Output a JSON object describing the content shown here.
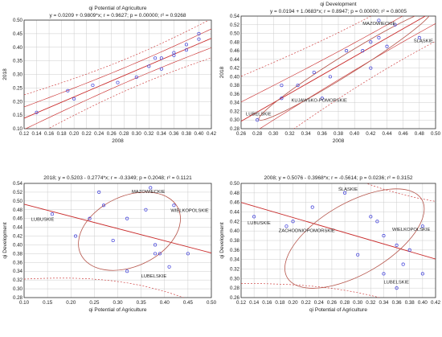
{
  "chart_data": [
    {
      "type": "scatter",
      "title_line1": "qi Potential of Agriculture",
      "title_line2": "y = 0.0209 + 0.9809*x; r = 0.9627; p = 0.00000; r² = 0.9268",
      "xlabel": "2008",
      "ylabel": "2018",
      "xlim": [
        0.12,
        0.42
      ],
      "ylim": [
        0.1,
        0.5
      ],
      "xticks": [
        "0.12",
        "0.14",
        "0.16",
        "0.18",
        "0.20",
        "0.22",
        "0.24",
        "0.26",
        "0.28",
        "0.30",
        "0.32",
        "0.34",
        "0.36",
        "0.38",
        "0.40",
        "0.42"
      ],
      "yticks": [
        "0.10",
        "0.15",
        "0.20",
        "0.25",
        "0.30",
        "0.35",
        "0.40",
        "0.45",
        "0.50"
      ],
      "regression": {
        "intercept": 0.0209,
        "slope": 0.9809
      },
      "x": [
        0.14,
        0.19,
        0.2,
        0.23,
        0.27,
        0.3,
        0.32,
        0.33,
        0.34,
        0.34,
        0.36,
        0.36,
        0.38,
        0.38,
        0.4,
        0.4
      ],
      "y": [
        0.16,
        0.24,
        0.21,
        0.26,
        0.27,
        0.29,
        0.33,
        0.36,
        0.36,
        0.32,
        0.37,
        0.38,
        0.39,
        0.41,
        0.43,
        0.45
      ],
      "labels": []
    },
    {
      "type": "scatter",
      "title_line1": "qi Development",
      "title_line2": "y = 0.0194 + 1.0683*x; r = 0.8947; p = 0.00000; r² = 0.8005",
      "xlabel": "2008",
      "ylabel": "2018",
      "xlim": [
        0.26,
        0.5
      ],
      "ylim": [
        0.28,
        0.54
      ],
      "xticks": [
        "0.26",
        "0.28",
        "0.30",
        "0.32",
        "0.34",
        "0.36",
        "0.38",
        "0.40",
        "0.42",
        "0.44",
        "0.46",
        "0.48",
        "0.50"
      ],
      "yticks": [
        "0.28",
        "0.30",
        "0.32",
        "0.34",
        "0.36",
        "0.38",
        "0.40",
        "0.42",
        "0.44",
        "0.46",
        "0.48",
        "0.50",
        "0.52",
        "0.54"
      ],
      "regression": {
        "intercept": 0.0194,
        "slope": 1.0683
      },
      "x": [
        0.28,
        0.31,
        0.31,
        0.33,
        0.35,
        0.36,
        0.37,
        0.39,
        0.41,
        0.42,
        0.42,
        0.43,
        0.43,
        0.44,
        0.45,
        0.48
      ],
      "y": [
        0.3,
        0.35,
        0.38,
        0.38,
        0.41,
        0.35,
        0.4,
        0.46,
        0.46,
        0.48,
        0.42,
        0.53,
        0.49,
        0.47,
        0.52,
        0.49
      ],
      "labels": [
        {
          "text": "MAZOWIECKIE",
          "x": 0.41,
          "y": 0.52
        },
        {
          "text": "ŚLĄSKIE",
          "x": 0.473,
          "y": 0.48
        },
        {
          "text": "KUJAWSKO-POMORSKIE",
          "x": 0.322,
          "y": 0.342
        },
        {
          "text": "LUBELSKIE",
          "x": 0.266,
          "y": 0.311
        }
      ]
    },
    {
      "type": "scatter",
      "title_line1": "2018; y = 0.5203 - 0.2774*x; r = -0.3349; p = 0.2048; r² = 0.1121",
      "title_line2": "",
      "xlabel": "qi Potential of Agriculture",
      "ylabel": "qi Development",
      "xlim": [
        0.1,
        0.5
      ],
      "ylim": [
        0.28,
        0.54
      ],
      "xticks": [
        "0.10",
        "0.15",
        "0.20",
        "0.25",
        "0.30",
        "0.35",
        "0.40",
        "0.45",
        "0.50"
      ],
      "yticks": [
        "0.28",
        "0.30",
        "0.32",
        "0.34",
        "0.36",
        "0.38",
        "0.40",
        "0.42",
        "0.44",
        "0.46",
        "0.48",
        "0.50",
        "0.52",
        "0.54"
      ],
      "regression": {
        "intercept": 0.5203,
        "slope": -0.2774
      },
      "x": [
        0.16,
        0.21,
        0.24,
        0.26,
        0.27,
        0.29,
        0.32,
        0.32,
        0.36,
        0.37,
        0.38,
        0.38,
        0.39,
        0.41,
        0.42,
        0.45
      ],
      "y": [
        0.47,
        0.42,
        0.46,
        0.52,
        0.49,
        0.41,
        0.46,
        0.34,
        0.48,
        0.53,
        0.4,
        0.38,
        0.38,
        0.35,
        0.49,
        0.38
      ],
      "labels": [
        {
          "text": "LUBUSKIE",
          "x": 0.115,
          "y": 0.455
        },
        {
          "text": "MAZOWIECKIE",
          "x": 0.33,
          "y": 0.518
        },
        {
          "text": "WIELKOPOLSKIE",
          "x": 0.413,
          "y": 0.475
        },
        {
          "text": "LUBELSKIE",
          "x": 0.35,
          "y": 0.326
        }
      ]
    },
    {
      "type": "scatter",
      "title_line1": "2008; y = 0.5076 - 0.3968*x; r = -0.5614; p = 0.0236; r² = 0.3152",
      "title_line2": "",
      "xlabel": "qi Potential of Agriculture",
      "ylabel": "qi Development",
      "xlim": [
        0.12,
        0.42
      ],
      "ylim": [
        0.26,
        0.5
      ],
      "xticks": [
        "0.12",
        "0.14",
        "0.16",
        "0.18",
        "0.20",
        "0.22",
        "0.24",
        "0.26",
        "0.28",
        "0.30",
        "0.32",
        "0.34",
        "0.36",
        "0.38",
        "0.40",
        "0.42"
      ],
      "yticks": [
        "0.26",
        "0.28",
        "0.30",
        "0.32",
        "0.34",
        "0.36",
        "0.38",
        "0.40",
        "0.42",
        "0.44",
        "0.46",
        "0.48",
        "0.50"
      ],
      "regression": {
        "intercept": 0.5076,
        "slope": -0.3968
      },
      "x": [
        0.14,
        0.19,
        0.2,
        0.23,
        0.28,
        0.3,
        0.32,
        0.33,
        0.34,
        0.34,
        0.36,
        0.36,
        0.37,
        0.38,
        0.4,
        0.4
      ],
      "y": [
        0.43,
        0.41,
        0.42,
        0.45,
        0.48,
        0.35,
        0.43,
        0.42,
        0.39,
        0.31,
        0.37,
        0.28,
        0.33,
        0.36,
        0.31,
        0.41
      ],
      "labels": [
        {
          "text": "LUBUSKIE",
          "x": 0.13,
          "y": 0.414
        },
        {
          "text": "ŚLĄSKIE",
          "x": 0.27,
          "y": 0.485
        },
        {
          "text": "ZACHODNIOPOMORSKIE",
          "x": 0.178,
          "y": 0.398
        },
        {
          "text": "WIELKOPOLSKIE",
          "x": 0.353,
          "y": 0.4
        },
        {
          "text": "LUBELSKIE",
          "x": 0.34,
          "y": 0.29
        }
      ]
    }
  ]
}
